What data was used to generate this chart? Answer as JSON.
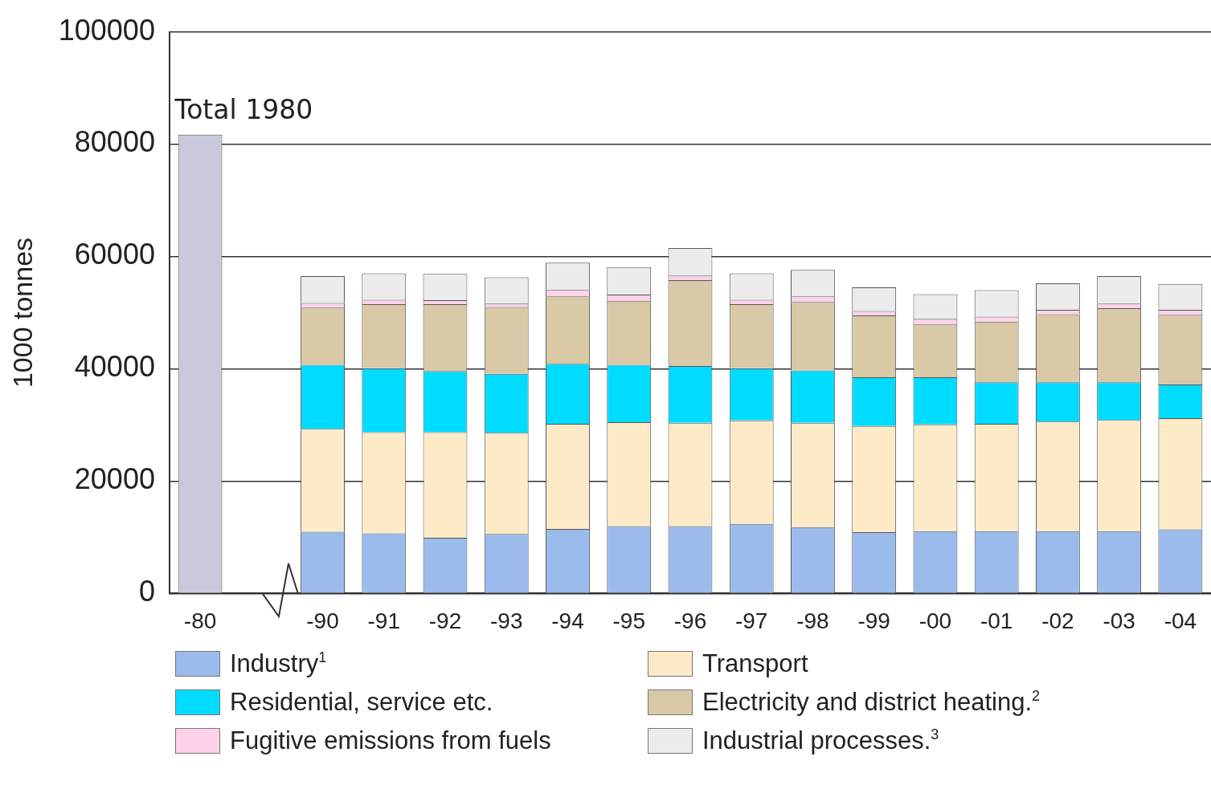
{
  "chart_data": {
    "type": "bar",
    "stacked": true,
    "ylabel": "1000 tonnes",
    "categories": [
      "-80",
      null,
      "-90",
      "-91",
      "-92",
      "-93",
      "-94",
      "-95",
      "-96",
      "-97",
      "-98",
      "-99",
      "-00",
      "-01",
      "-02",
      "-03",
      "-04"
    ],
    "series": [
      {
        "name": "Industry$^{1}$",
        "color": "#9bbbec",
        "values": [
          null,
          null,
          11000,
          10700,
          9900,
          10600,
          11500,
          12000,
          12000,
          12400,
          11800,
          10900,
          11100,
          11100,
          11100,
          11100,
          11400
        ]
      },
      {
        "name": "Transport",
        "color": "#fdebc8",
        "values": [
          null,
          null,
          18300,
          18000,
          18800,
          18000,
          18700,
          18500,
          18400,
          18400,
          18600,
          18900,
          19000,
          19100,
          19500,
          19800,
          19800
        ]
      },
      {
        "name": "Residential, service etc.",
        "color": "#00dcff",
        "values": [
          null,
          null,
          11400,
          11400,
          10900,
          10500,
          10700,
          10200,
          10100,
          9300,
          9300,
          8700,
          8400,
          7400,
          7000,
          6700,
          6000
        ]
      },
      {
        "name": "Electricity and district heating.$^{2}$",
        "color": "#d9c9a6",
        "values": [
          null,
          null,
          10200,
          11400,
          11900,
          11900,
          12000,
          11400,
          15300,
          11400,
          12200,
          11000,
          9400,
          10800,
          12100,
          13200,
          12400
        ]
      },
      {
        "name": "Fugitive emissions from fuels",
        "color": "#fcd3ea",
        "values": [
          null,
          null,
          800,
          800,
          700,
          600,
          1200,
          1100,
          800,
          800,
          1000,
          800,
          1000,
          900,
          800,
          800,
          900
        ]
      },
      {
        "name": "Industrial processes.$^{3}$",
        "color": "#ececec",
        "values": [
          null,
          null,
          4800,
          4700,
          4700,
          4700,
          4800,
          4900,
          4900,
          4700,
          4700,
          4200,
          4400,
          4700,
          4700,
          4900,
          4600
        ]
      },
      {
        "name": "Total 1980",
        "color": "#c9c9dc",
        "values": [
          81700,
          null,
          null,
          null,
          null,
          null,
          null,
          null,
          null,
          null,
          null,
          null,
          null,
          null,
          null,
          null,
          null
        ]
      }
    ],
    "ylim": [
      0,
      100000
    ],
    "yticks": [
      0,
      20000,
      40000,
      60000,
      80000,
      100000
    ],
    "grid": "y",
    "legend": "bottom"
  }
}
